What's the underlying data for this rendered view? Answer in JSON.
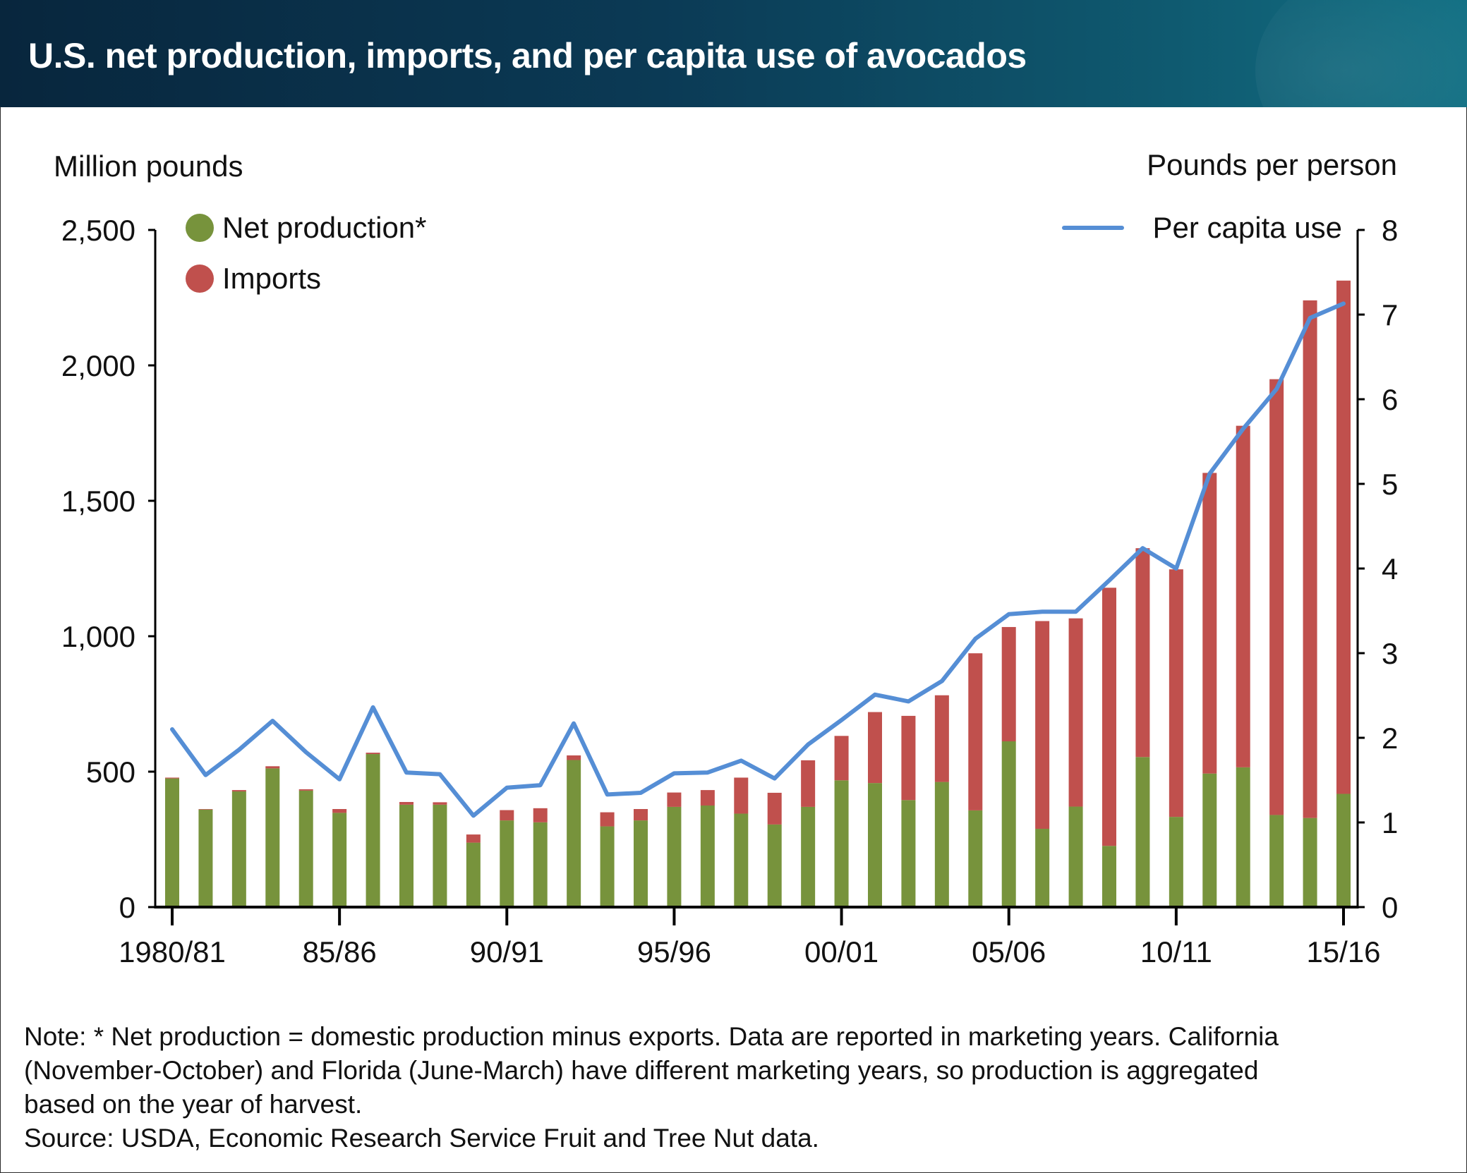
{
  "header": {
    "title": "U.S. net production, imports, and per capita use of avocados"
  },
  "colors": {
    "net_production": "#77933C",
    "imports": "#C0504D",
    "per_capita": "#558ED5",
    "header_dark": "#08263d",
    "header_light": "#127084"
  },
  "chart_data": {
    "type": "bar",
    "subtype": "stacked-bar-with-line-secondary-axis",
    "title": "U.S. net production, imports, and per capita use of avocados",
    "ylabel": "Million pounds",
    "y2label": "Pounds per person",
    "ylim": [
      0,
      2500
    ],
    "y2lim": [
      0,
      8
    ],
    "yticks": [
      0,
      500,
      1000,
      1500,
      2000,
      2500
    ],
    "ytick_labels": [
      "0",
      "500",
      "1,000",
      "1,500",
      "2,000",
      "2,500"
    ],
    "y2ticks": [
      0,
      1,
      2,
      3,
      4,
      5,
      6,
      7,
      8
    ],
    "y2tick_labels": [
      "0",
      "1",
      "2",
      "3",
      "4",
      "5",
      "6",
      "7",
      "8"
    ],
    "xtick_labels": [
      {
        "index": 0,
        "label": "1980/81"
      },
      {
        "index": 5,
        "label": "85/86"
      },
      {
        "index": 10,
        "label": "90/91"
      },
      {
        "index": 15,
        "label": "95/96"
      },
      {
        "index": 20,
        "label": "00/01"
      },
      {
        "index": 25,
        "label": "05/06"
      },
      {
        "index": 30,
        "label": "10/11"
      },
      {
        "index": 35,
        "label": "15/16"
      }
    ],
    "categories": [
      "1980/81",
      "81/82",
      "82/83",
      "83/84",
      "84/85",
      "85/86",
      "86/87",
      "87/88",
      "88/89",
      "89/90",
      "90/91",
      "91/92",
      "92/93",
      "93/94",
      "94/95",
      "95/96",
      "96/97",
      "97/98",
      "98/99",
      "99/00",
      "00/01",
      "01/02",
      "02/03",
      "03/04",
      "04/05",
      "05/06",
      "06/07",
      "07/08",
      "08/09",
      "09/10",
      "10/11",
      "11/12",
      "12/13",
      "13/14",
      "14/15",
      "15/16"
    ],
    "series": [
      {
        "name": "Net production*",
        "type": "bar",
        "axis": "left",
        "stack": "supply",
        "values": [
          475,
          360,
          427,
          512,
          430,
          348,
          565,
          378,
          378,
          238,
          320,
          313,
          543,
          298,
          320,
          370,
          375,
          345,
          305,
          370,
          468,
          458,
          395,
          462,
          357,
          612,
          289,
          371,
          226,
          554,
          333,
          493,
          516,
          340,
          329,
          418
        ]
      },
      {
        "name": "Imports",
        "type": "bar",
        "axis": "left",
        "stack": "supply",
        "values": [
          3,
          2,
          5,
          8,
          5,
          14,
          5,
          10,
          9,
          30,
          38,
          52,
          17,
          52,
          42,
          53,
          57,
          133,
          117,
          172,
          164,
          262,
          311,
          320,
          580,
          422,
          767,
          695,
          953,
          771,
          914,
          1110,
          1261,
          1609,
          1911,
          1895
        ]
      },
      {
        "name": "Per capita use",
        "type": "line",
        "axis": "right",
        "values": [
          2.1,
          1.56,
          1.86,
          2.2,
          1.83,
          1.51,
          2.36,
          1.59,
          1.57,
          1.08,
          1.41,
          1.44,
          2.17,
          1.33,
          1.35,
          1.58,
          1.59,
          1.73,
          1.52,
          1.92,
          2.21,
          2.51,
          2.43,
          2.67,
          3.17,
          3.46,
          3.49,
          3.49,
          3.86,
          4.24,
          4.0,
          5.12,
          5.65,
          6.12,
          6.96,
          7.13
        ]
      }
    ],
    "legend": {
      "left": [
        {
          "label": "Net production*",
          "marker": "circle"
        },
        {
          "label": "Imports",
          "marker": "circle"
        }
      ],
      "right": [
        {
          "label": "Per capita use",
          "marker": "line"
        }
      ],
      "placement": "top-left and top-right"
    },
    "grid": false
  },
  "notes": {
    "lines": [
      "Note: * Net production = domestic production minus exports. Data are reported in marketing years. California",
      "(November-October) and Florida (June-March) have different marketing years, so production is aggregated",
      "based on the year of harvest.",
      "Source: USDA, Economic Research Service Fruit and Tree Nut data."
    ]
  }
}
